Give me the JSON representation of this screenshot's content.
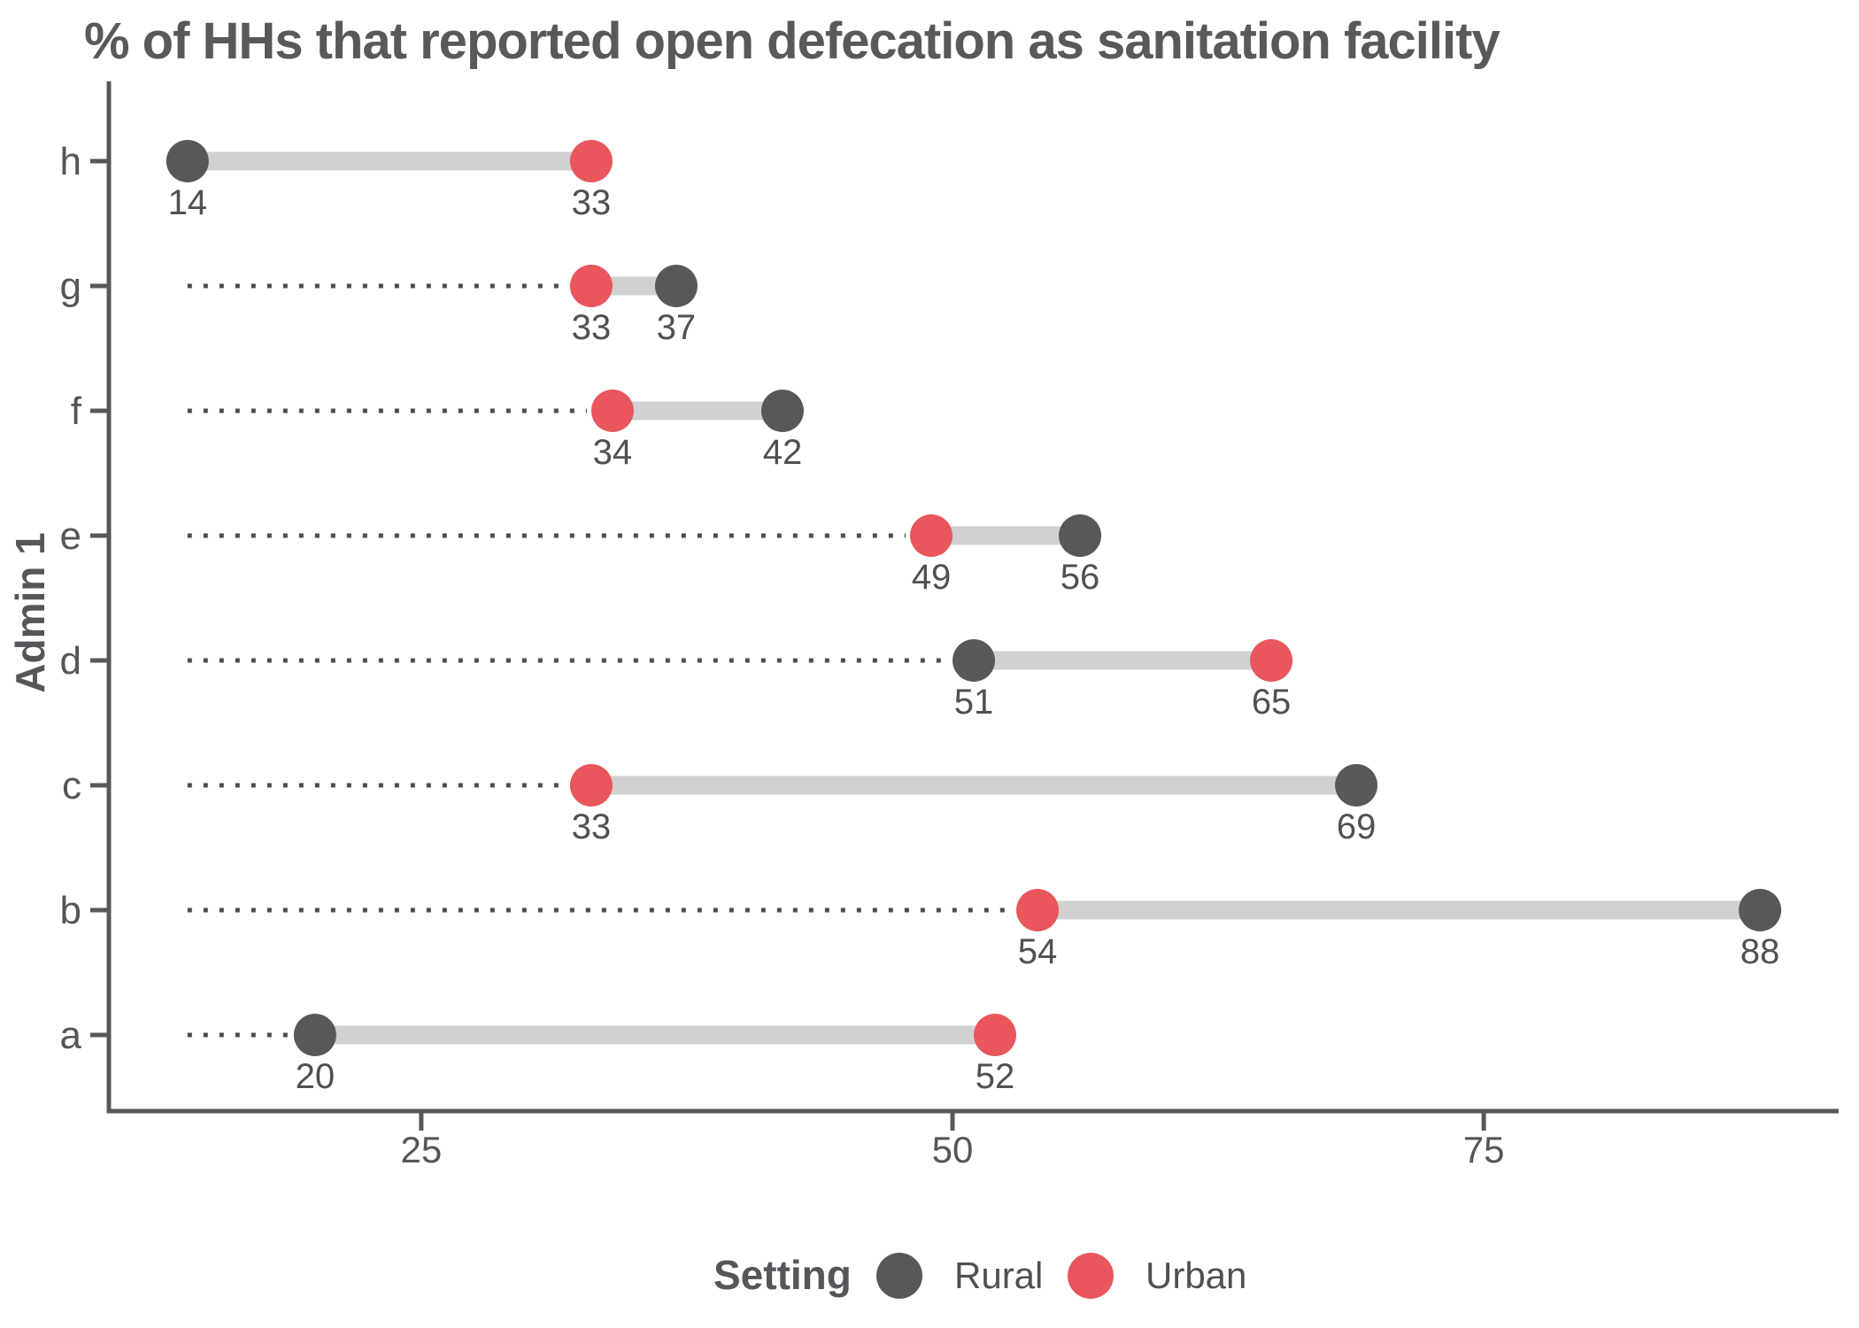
{
  "chart_data": {
    "type": "dumbbell",
    "title": "% of HHs that reported open defecation as sanitation facility",
    "ylabel": "Admin 1",
    "xlabel": "",
    "x_domain": [
      10.3,
      91.7
    ],
    "x_ticks": [
      25,
      50,
      75
    ],
    "leader_start": 14,
    "categories": [
      "h",
      "g",
      "f",
      "e",
      "d",
      "c",
      "b",
      "a"
    ],
    "series": [
      {
        "name": "Rural",
        "color": "#58585A",
        "values": [
          14,
          37,
          42,
          56,
          51,
          69,
          88,
          20
        ]
      },
      {
        "name": "Urban",
        "color": "#E9565B",
        "values": [
          33,
          33,
          34,
          49,
          65,
          33,
          54,
          52
        ]
      }
    ],
    "value_labels_shown": true,
    "legend": {
      "title": "Setting",
      "position": "bottom"
    },
    "colors": {
      "connector": "#D1D1D3",
      "leader_dots": "#4D4D4F",
      "axis_line": "#58585A",
      "tick_text": "#55565A",
      "value_text": "#4F5054",
      "title_text": "#595959",
      "background": "#FFFFFF"
    }
  }
}
